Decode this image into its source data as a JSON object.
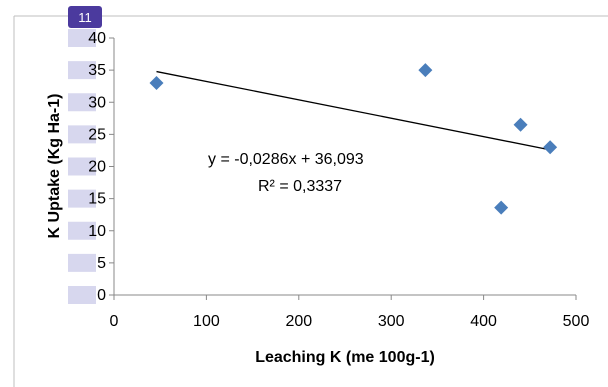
{
  "badge": {
    "label": "11",
    "color": "#4b3a9e"
  },
  "chart_data": {
    "type": "scatter",
    "xlabel": "Leaching K (me 100g-1)",
    "ylabel": "K Uptake (Kg Ha-1)",
    "xlim": [
      0,
      500
    ],
    "ylim": [
      0,
      40
    ],
    "x_ticks": [
      "0",
      "100",
      "200",
      "300",
      "400",
      "500"
    ],
    "y_ticks": [
      "0",
      "5",
      "10",
      "15",
      "20",
      "25",
      "30",
      "35",
      "40"
    ],
    "grid": false,
    "legend": "none",
    "marker": "diamond",
    "point_color": "#4a7ebb",
    "trendline_color": "#000000",
    "points": [
      {
        "x": 46,
        "y": 33
      },
      {
        "x": 337,
        "y": 35
      },
      {
        "x": 419,
        "y": 13.6
      },
      {
        "x": 440,
        "y": 26.5
      },
      {
        "x": 472,
        "y": 23
      }
    ],
    "trendline": {
      "slope": -0.0286,
      "intercept": 36.093,
      "x_start": 46,
      "x_end": 472
    },
    "annotations": {
      "equation": "y = -0,0286x + 36,093",
      "r_squared": "R² = 0,3337"
    },
    "y_tick_highlight_color": "#d7d7ee"
  }
}
